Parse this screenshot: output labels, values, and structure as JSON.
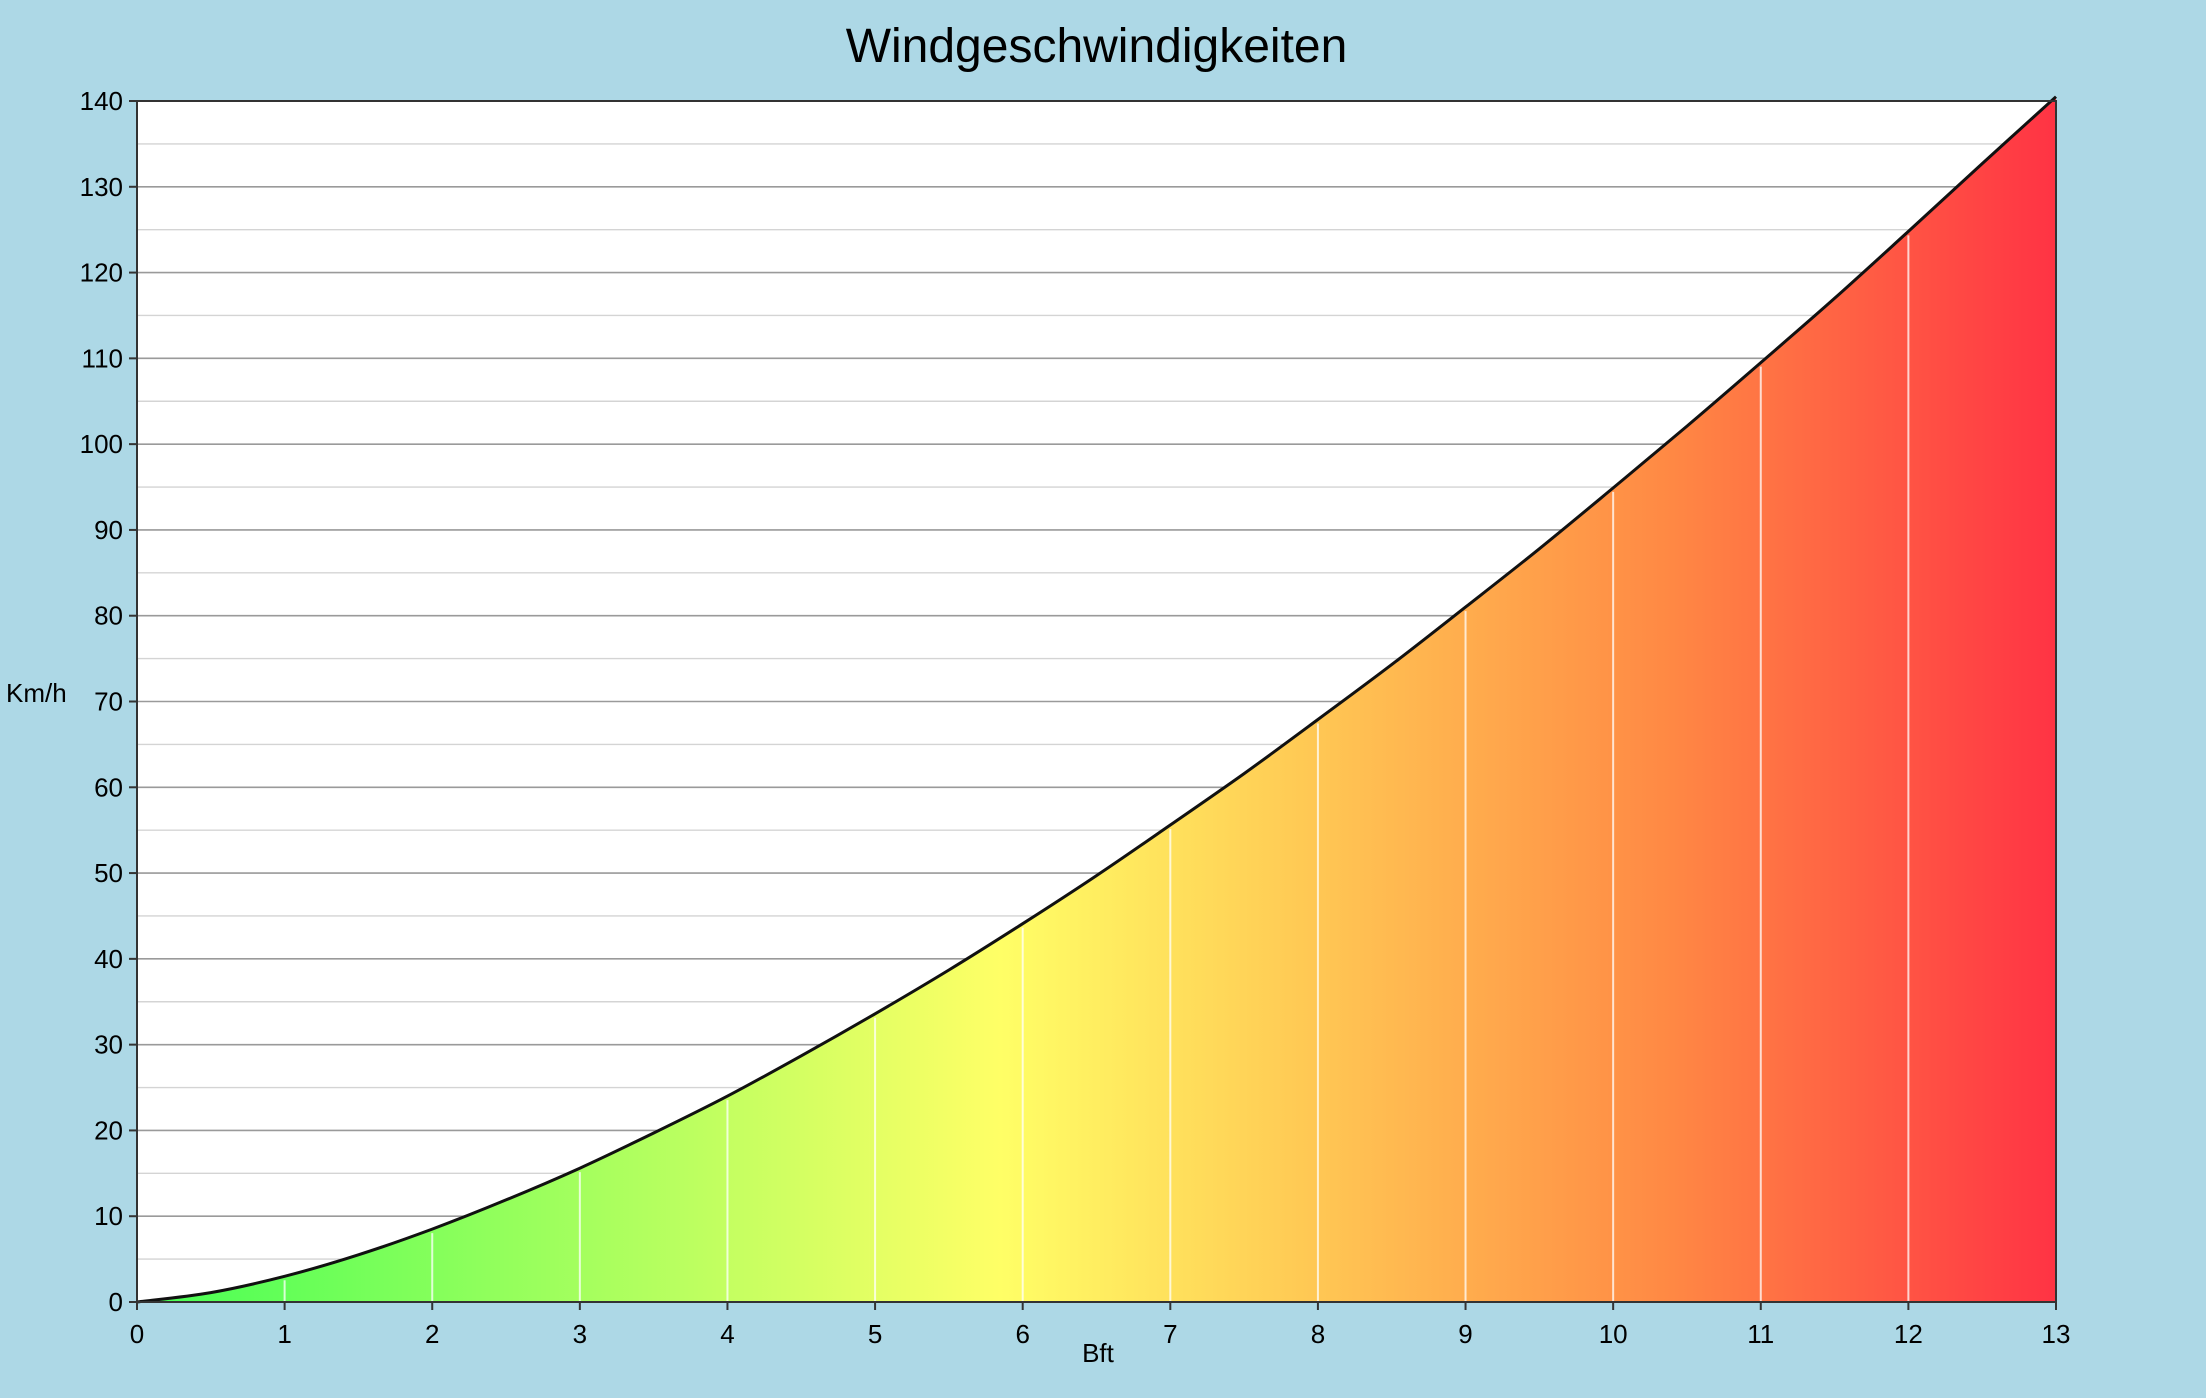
{
  "chart_data": {
    "type": "area",
    "title": "Windgeschwindigkeiten",
    "xlabel": "Bft",
    "ylabel": "Km/h",
    "xlim": [
      0,
      13
    ],
    "ylim": [
      0,
      140
    ],
    "x_ticks": [
      0,
      1,
      2,
      3,
      4,
      5,
      6,
      7,
      8,
      9,
      10,
      11,
      12,
      13
    ],
    "y_ticks": [
      0,
      10,
      20,
      30,
      40,
      50,
      60,
      70,
      80,
      90,
      100,
      110,
      120,
      130,
      140
    ],
    "grid": true,
    "x": [
      0,
      0.5,
      1,
      1.5,
      2,
      2.5,
      3,
      3.5,
      4,
      4.5,
      5,
      5.5,
      6,
      6.5,
      7,
      7.5,
      8,
      8.5,
      9,
      9.5,
      10,
      10.5,
      11,
      11.5,
      12,
      12.5,
      13
    ],
    "values": [
      0,
      1.1,
      3,
      5.5,
      8.5,
      11.9,
      15.6,
      19.7,
      24,
      28.7,
      33.6,
      38.7,
      44.1,
      49.7,
      55.6,
      61.6,
      67.9,
      74.3,
      81,
      87.8,
      94.9,
      102.1,
      109.5,
      117,
      124.8,
      132.7,
      140.5
    ],
    "colors": {
      "background": "#add8e6",
      "plot_area": "#ffffff",
      "curve": "#111111",
      "gradient": [
        "#44ff55",
        "#ffff66",
        "#ffcc55",
        "#ff8844",
        "#ff3344"
      ]
    }
  }
}
